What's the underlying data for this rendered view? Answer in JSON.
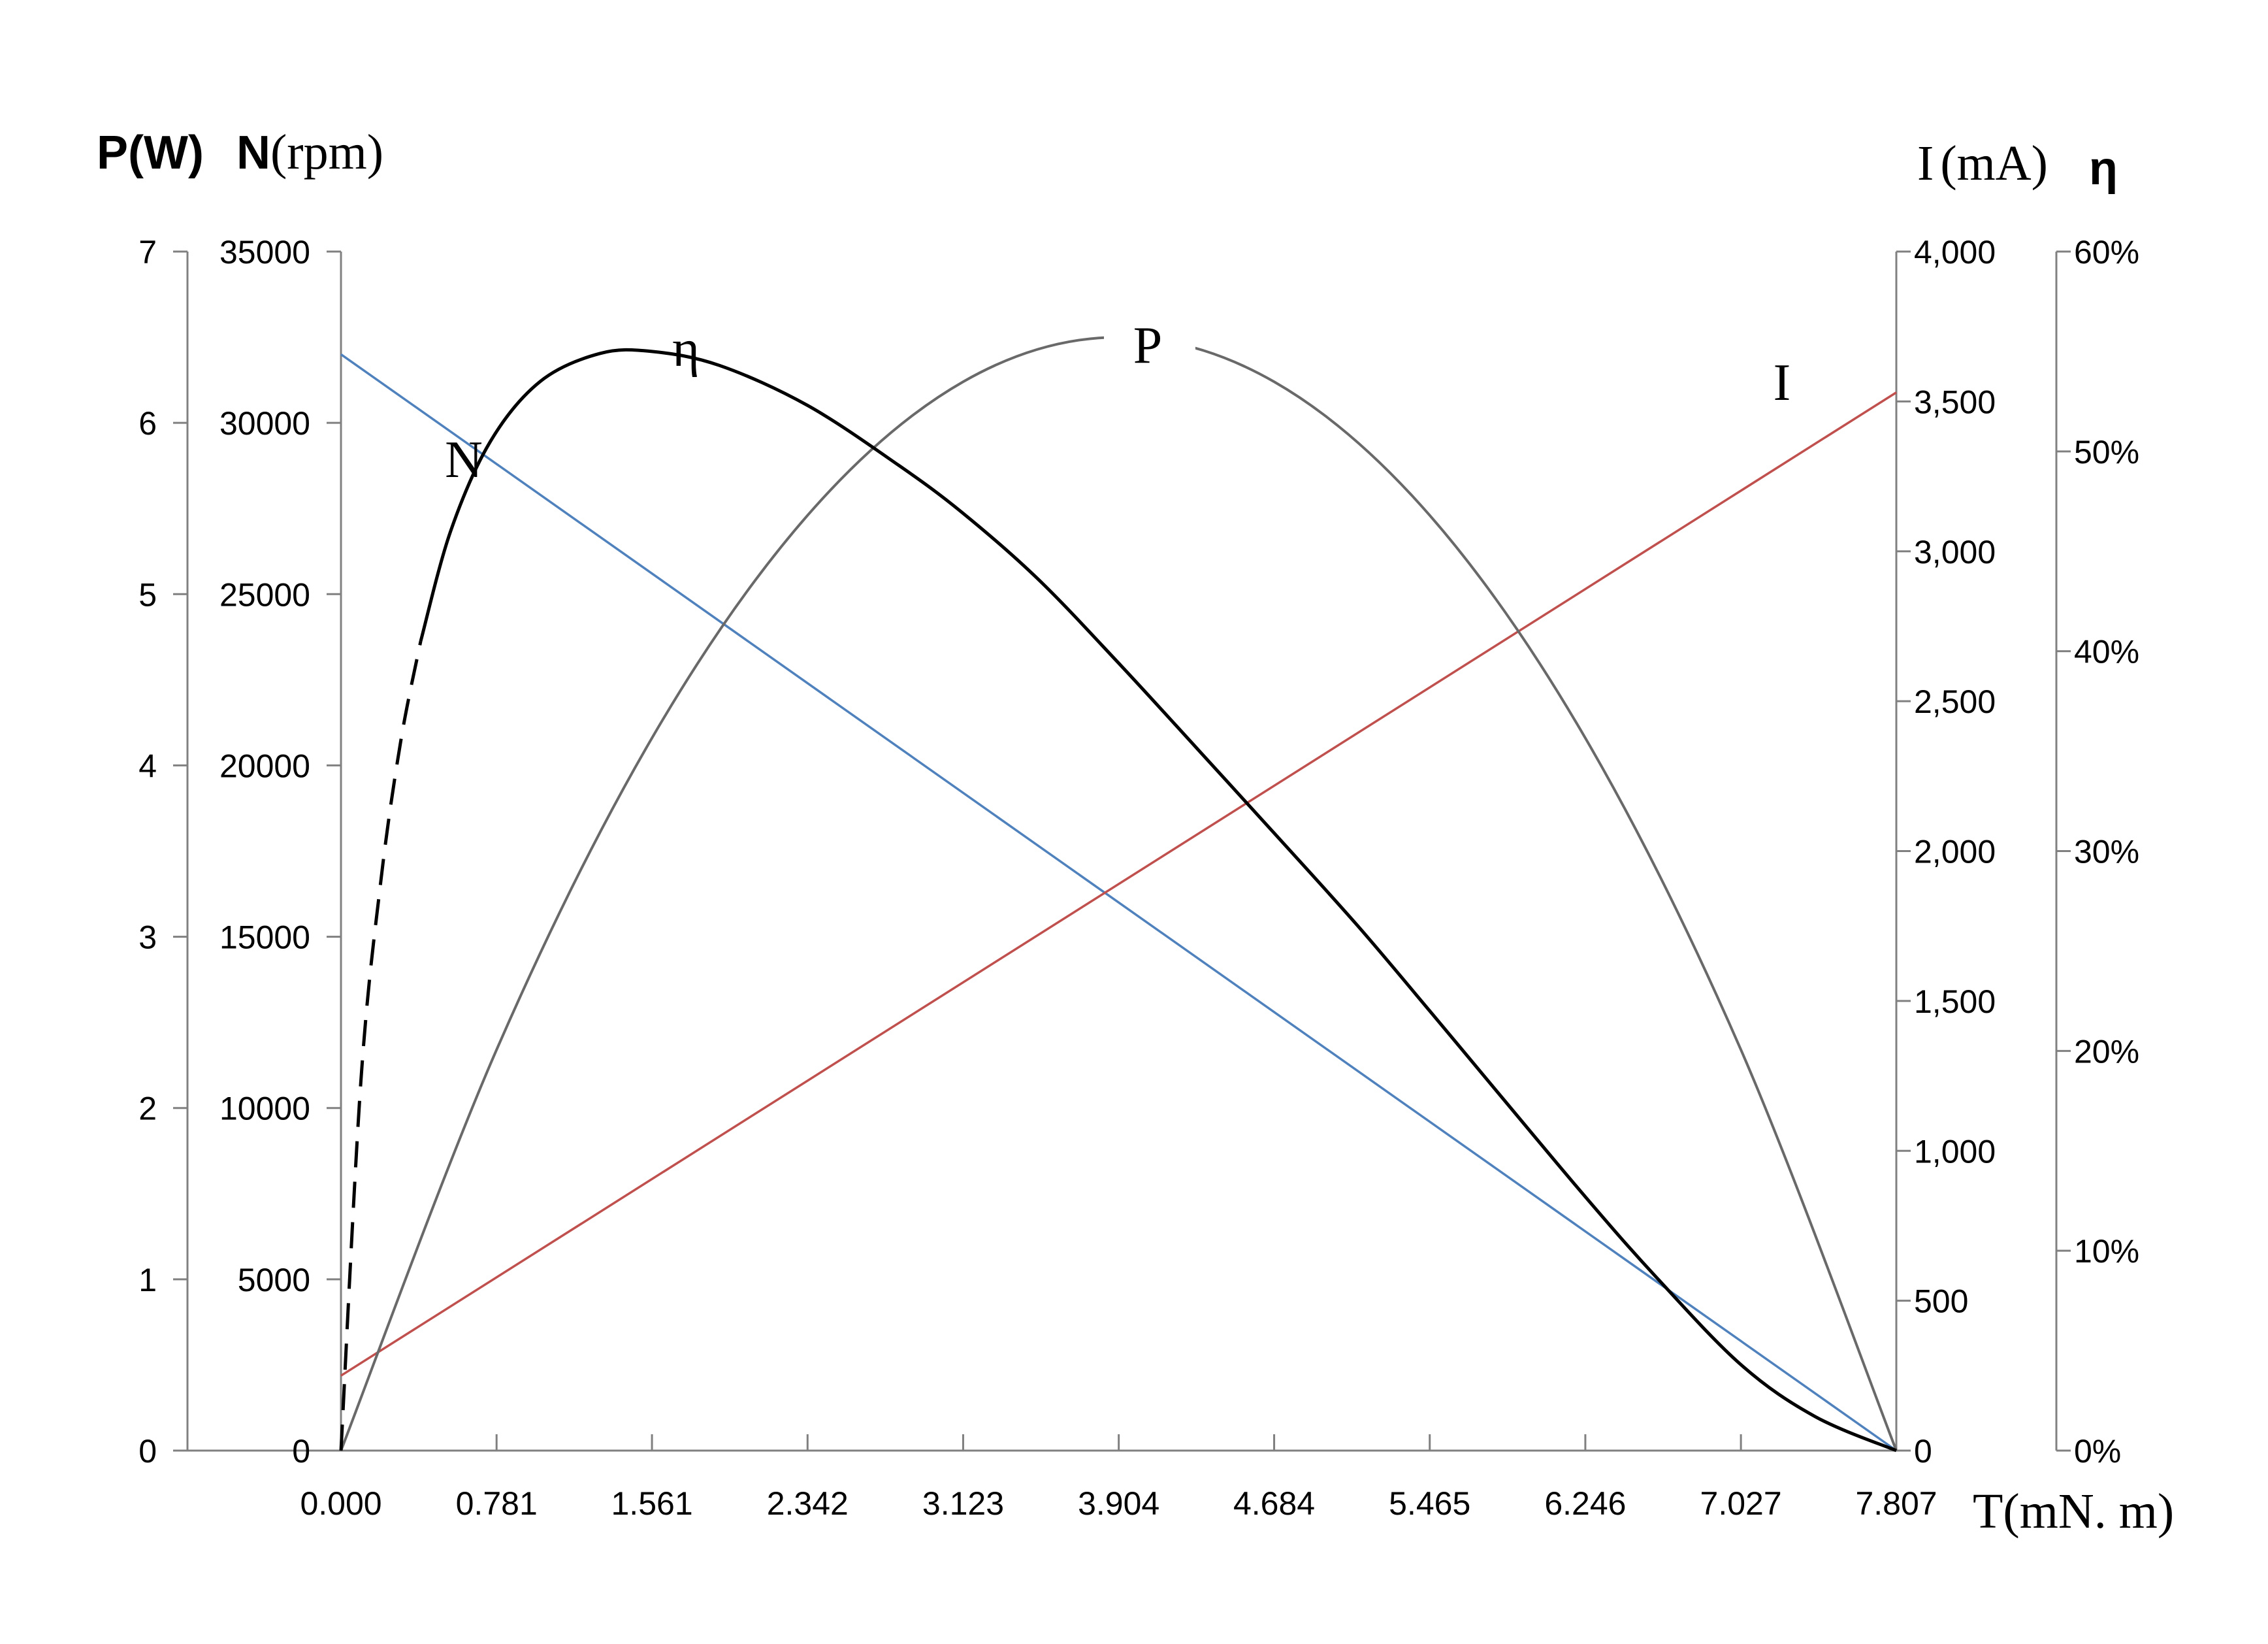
{
  "chart_data": {
    "type": "line",
    "x": [
      0.0,
      0.781,
      1.561,
      2.342,
      3.123,
      3.904,
      4.684,
      5.465,
      6.246,
      7.027,
      7.807
    ],
    "xlabel": "T(mN. m)",
    "xticks": [
      "0.000",
      "0.781",
      "1.561",
      "2.342",
      "3.123",
      "3.904",
      "4.684",
      "5.465",
      "6.246",
      "7.027",
      "7.807"
    ],
    "axes": {
      "P": {
        "title": "P(W)",
        "ylim": [
          0,
          7
        ],
        "ticks": [
          "0",
          "1",
          "2",
          "3",
          "4",
          "5",
          "6",
          "7"
        ]
      },
      "N": {
        "title": "N(rpm)",
        "title_prefix": "N",
        "title_unit": "(rpm)",
        "ylim": [
          0,
          35000
        ],
        "ticks": [
          "0",
          "5000",
          "10000",
          "15000",
          "20000",
          "25000",
          "30000",
          "35000"
        ]
      },
      "I": {
        "title": "I(mA)",
        "title_symbol": "I",
        "title_unit": "(mA)",
        "ylim": [
          0,
          4000
        ],
        "ticks": [
          "0",
          "500",
          "1,000",
          "1,500",
          "2,000",
          "2,500",
          "3,000",
          "3,500",
          "4,000"
        ]
      },
      "eta": {
        "title": "η",
        "ylim": [
          0,
          60
        ],
        "ticks": [
          "0%",
          "10%",
          "20%",
          "30%",
          "40%",
          "50%",
          "60%"
        ]
      }
    },
    "series": [
      {
        "name": "N",
        "axis": "N",
        "color": "#4f81bd",
        "x": [
          0,
          7.807
        ],
        "values": [
          32000,
          0
        ]
      },
      {
        "name": "I",
        "axis": "I",
        "color": "#c0504d",
        "x": [
          0,
          7.807
        ],
        "values": [
          250,
          3530
        ]
      },
      {
        "name": "P",
        "axis": "P",
        "color": "#696969",
        "x": [
          0,
          0.781,
          1.561,
          2.342,
          3.123,
          3.904,
          4.684,
          5.465,
          6.246,
          7.027,
          7.807
        ],
        "values": [
          0,
          2.34,
          4.16,
          5.46,
          6.24,
          6.5,
          6.24,
          5.46,
          4.16,
          2.34,
          0
        ]
      },
      {
        "name": "η",
        "axis": "eta",
        "color": "#000000",
        "x": [
          0.0,
          0.1,
          0.2,
          0.3,
          0.4,
          0.55,
          0.75,
          1.0,
          1.3,
          1.561,
          1.9,
          2.342,
          2.8,
          3.123,
          3.5,
          3.904,
          4.3,
          4.684,
          5.1,
          5.465,
          5.8,
          6.246,
          6.6,
          7.027,
          7.4,
          7.807
        ],
        "values": [
          0,
          18.5,
          28.5,
          35.5,
          40.5,
          46,
          50.5,
          53.5,
          54.9,
          55.0,
          54.3,
          52.3,
          49.3,
          46.9,
          43.6,
          39.4,
          35.1,
          30.9,
          26.3,
          22.0,
          18.0,
          12.7,
          8.7,
          4.3,
          1.7,
          0
        ]
      }
    ],
    "curve_labels": {
      "N": "N",
      "eta": "η",
      "P": "P",
      "I": "I"
    },
    "grid": false
  }
}
